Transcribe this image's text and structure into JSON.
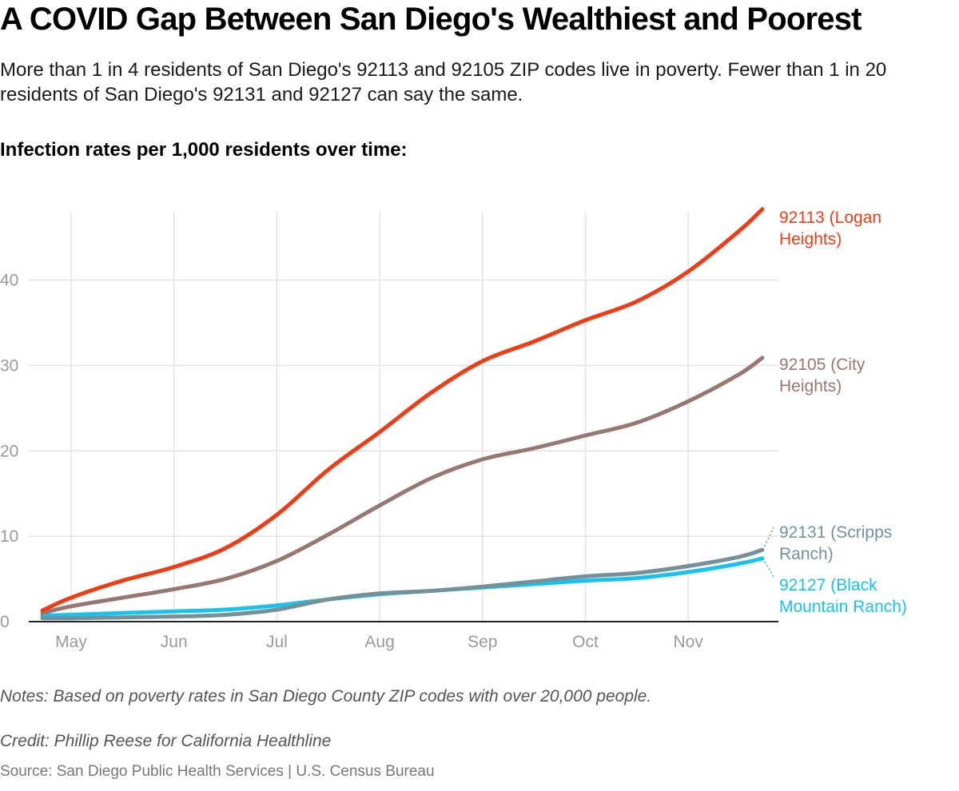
{
  "header": {
    "title": "A COVID Gap Between San Diego's Wealthiest and Poorest",
    "subtitle": "More than 1 in 4 residents of San Diego's 92113 and 92105 ZIP codes live in poverty. Fewer than 1 in 20 residents of San Diego's 92131 and 92127 can say the same.",
    "chart_label": "Infection rates per 1,000 residents over time:"
  },
  "footer": {
    "notes": "Notes: Based on poverty rates in San Diego County ZIP codes with over 20,000 people.",
    "credit": "Credit: Phillip Reese for California Healthline",
    "source": "Source: San Diego Public Health Services | U.S. Census Bureau"
  },
  "colors": {
    "grid": "#e3e3e3",
    "axis": "#222222",
    "tick_text": "#999999"
  },
  "chart_data": {
    "type": "line",
    "title": "Infection rates per 1,000 residents over time:",
    "xlabel": "",
    "ylabel": "",
    "x_ticks": [
      "May",
      "Jun",
      "Jul",
      "Aug",
      "Sep",
      "Oct",
      "Nov"
    ],
    "x_range": [
      -0.4,
      6.72
    ],
    "ylim": [
      0,
      48
    ],
    "y_ticks": [
      0,
      10,
      20,
      30,
      40
    ],
    "grid": true,
    "legend": "direct labels at right end of lines",
    "series": [
      {
        "name": "92113 (Logan Heights)",
        "label_lines": [
          "92113 (Logan",
          "Heights)"
        ],
        "color": "#f03c14",
        "points": [
          [
            -0.28,
            1.3
          ],
          [
            0.0,
            2.8
          ],
          [
            0.5,
            4.8
          ],
          [
            1.0,
            6.4
          ],
          [
            1.5,
            8.6
          ],
          [
            2.0,
            12.5
          ],
          [
            2.5,
            17.8
          ],
          [
            3.0,
            22.2
          ],
          [
            3.5,
            26.8
          ],
          [
            4.0,
            30.5
          ],
          [
            4.5,
            32.8
          ],
          [
            5.0,
            35.3
          ],
          [
            5.5,
            37.5
          ],
          [
            6.0,
            41.0
          ],
          [
            6.5,
            45.8
          ],
          [
            6.72,
            48.3
          ]
        ]
      },
      {
        "name": "92105 (City Heights)",
        "label_lines": [
          "92105 (City",
          "Heights)"
        ],
        "color": "#977771",
        "points": [
          [
            -0.28,
            1.0
          ],
          [
            0.0,
            1.8
          ],
          [
            0.5,
            2.8
          ],
          [
            1.0,
            3.8
          ],
          [
            1.5,
            5.0
          ],
          [
            2.0,
            7.1
          ],
          [
            2.5,
            10.2
          ],
          [
            3.0,
            13.6
          ],
          [
            3.5,
            16.8
          ],
          [
            4.0,
            19.0
          ],
          [
            4.5,
            20.3
          ],
          [
            5.0,
            21.8
          ],
          [
            5.5,
            23.3
          ],
          [
            6.0,
            25.8
          ],
          [
            6.5,
            29.0
          ],
          [
            6.72,
            30.9
          ]
        ]
      },
      {
        "name": "92131 (Scripps Ranch)",
        "label_lines": [
          "92131 (Scripps",
          "Ranch)"
        ],
        "color": "#76909a",
        "points": [
          [
            -0.28,
            0.4
          ],
          [
            0.0,
            0.4
          ],
          [
            0.5,
            0.5
          ],
          [
            1.0,
            0.6
          ],
          [
            1.5,
            0.8
          ],
          [
            2.0,
            1.4
          ],
          [
            2.5,
            2.6
          ],
          [
            3.0,
            3.3
          ],
          [
            3.5,
            3.6
          ],
          [
            4.0,
            4.1
          ],
          [
            4.5,
            4.7
          ],
          [
            5.0,
            5.3
          ],
          [
            5.5,
            5.7
          ],
          [
            6.0,
            6.5
          ],
          [
            6.5,
            7.6
          ],
          [
            6.72,
            8.4
          ]
        ]
      },
      {
        "name": "92127 (Black Mountain Ranch)",
        "label_lines": [
          "92127 (Black",
          "Mountain Ranch)"
        ],
        "color": "#17c3ee",
        "points": [
          [
            -0.28,
            0.7
          ],
          [
            0.0,
            0.8
          ],
          [
            0.5,
            1.0
          ],
          [
            1.0,
            1.2
          ],
          [
            1.5,
            1.4
          ],
          [
            2.0,
            1.9
          ],
          [
            2.5,
            2.6
          ],
          [
            3.0,
            3.2
          ],
          [
            3.5,
            3.6
          ],
          [
            4.0,
            4.0
          ],
          [
            4.5,
            4.4
          ],
          [
            5.0,
            4.8
          ],
          [
            5.5,
            5.1
          ],
          [
            6.0,
            5.8
          ],
          [
            6.5,
            6.8
          ],
          [
            6.72,
            7.4
          ]
        ]
      }
    ]
  }
}
